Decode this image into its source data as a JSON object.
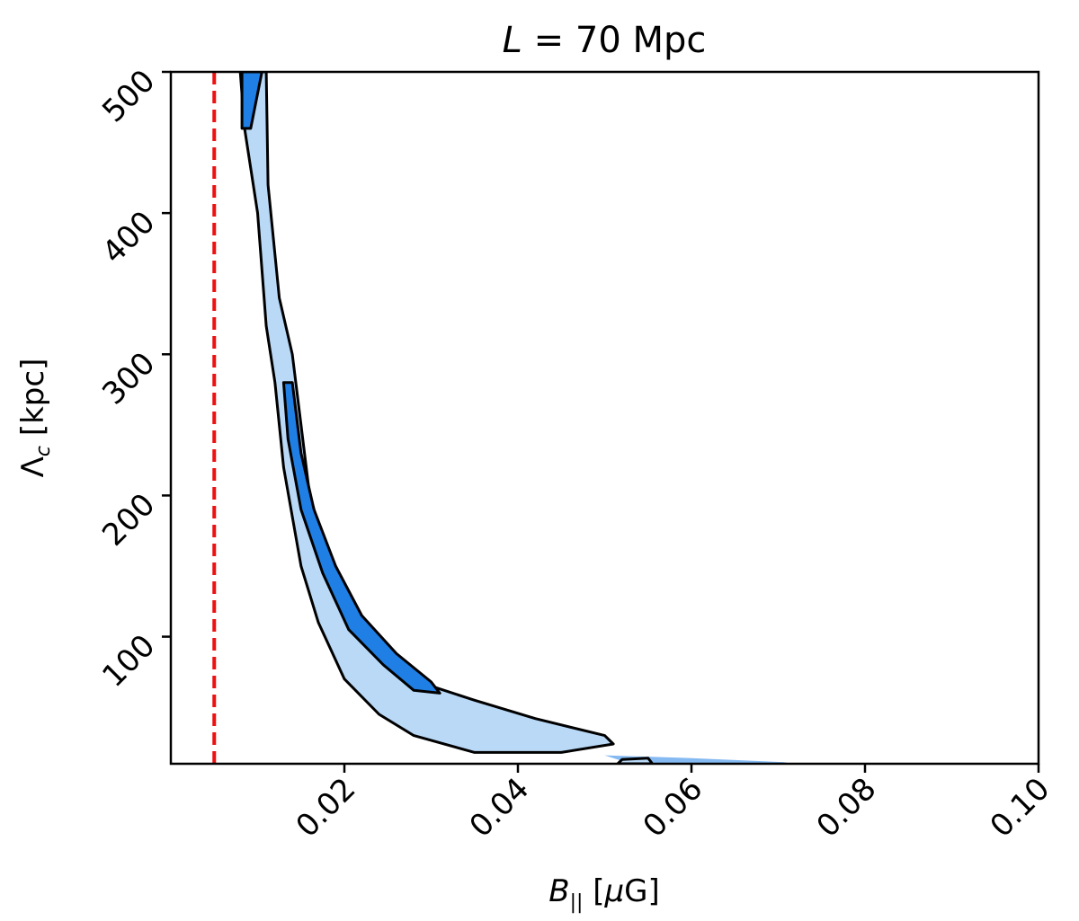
{
  "chart_data": {
    "type": "heatmap",
    "title": {
      "symbol": "L",
      "rest": " = 70 Mpc"
    },
    "xlabel": {
      "base": "B",
      "sub": "||",
      "rest": " [",
      "mu": "μ",
      "end": "G]"
    },
    "ylabel": {
      "base": "Λ",
      "sub": "c",
      "rest": " [kpc]"
    },
    "xlim": [
      0.0,
      0.1
    ],
    "ylim": [
      10,
      500
    ],
    "xticks": [
      0.02,
      0.04,
      0.06,
      0.08,
      0.1
    ],
    "xtick_labels": [
      "0.02",
      "0.04",
      "0.06",
      "0.08",
      "0.10"
    ],
    "yticks": [
      100,
      200,
      300,
      400,
      500
    ],
    "ytick_labels": [
      "100",
      "200",
      "300",
      "400",
      "500"
    ],
    "grid": false,
    "reference_line": {
      "x": 0.005,
      "color": "#ee1111",
      "style": "dashed"
    },
    "colors": {
      "outer_region": "#b9d9f7",
      "inner_region": "#1f7fe5",
      "contour_line": "#000000"
    },
    "region_68": [
      [
        0.0082,
        500
      ],
      [
        0.0082,
        460
      ],
      [
        0.0092,
        460
      ],
      [
        0.0105,
        500
      ]
    ],
    "region_95": [
      [
        0.008,
        500
      ],
      [
        0.011,
        500
      ],
      [
        0.0112,
        420
      ],
      [
        0.0125,
        340
      ],
      [
        0.014,
        300
      ],
      [
        0.015,
        250
      ],
      [
        0.016,
        200
      ],
      [
        0.018,
        160
      ],
      [
        0.02,
        130
      ],
      [
        0.023,
        100
      ],
      [
        0.026,
        80
      ],
      [
        0.03,
        65
      ],
      [
        0.035,
        55
      ],
      [
        0.042,
        42
      ],
      [
        0.05,
        30
      ],
      [
        0.051,
        24
      ],
      [
        0.045,
        18
      ],
      [
        0.035,
        18
      ],
      [
        0.028,
        30
      ],
      [
        0.024,
        45
      ],
      [
        0.02,
        70
      ],
      [
        0.017,
        110
      ],
      [
        0.015,
        150
      ],
      [
        0.013,
        220
      ],
      [
        0.012,
        280
      ],
      [
        0.011,
        320
      ],
      [
        0.01,
        400
      ],
      [
        0.0085,
        460
      ]
    ],
    "region_68_band": [
      [
        0.013,
        280
      ],
      [
        0.014,
        280
      ],
      [
        0.015,
        230
      ],
      [
        0.0165,
        190
      ],
      [
        0.019,
        150
      ],
      [
        0.022,
        115
      ],
      [
        0.026,
        88
      ],
      [
        0.03,
        68
      ],
      [
        0.031,
        60
      ],
      [
        0.028,
        62
      ],
      [
        0.0245,
        80
      ],
      [
        0.0205,
        105
      ],
      [
        0.0175,
        145
      ],
      [
        0.015,
        190
      ],
      [
        0.0135,
        240
      ]
    ],
    "small_contour": [
      [
        0.0515,
        10
      ],
      [
        0.052,
        13
      ],
      [
        0.055,
        14
      ],
      [
        0.0555,
        10
      ]
    ],
    "tail_shading": [
      [
        0.05,
        16
      ],
      [
        0.06,
        14
      ],
      [
        0.071,
        11
      ],
      [
        0.07,
        10
      ],
      [
        0.058,
        10
      ],
      [
        0.052,
        12
      ]
    ]
  }
}
